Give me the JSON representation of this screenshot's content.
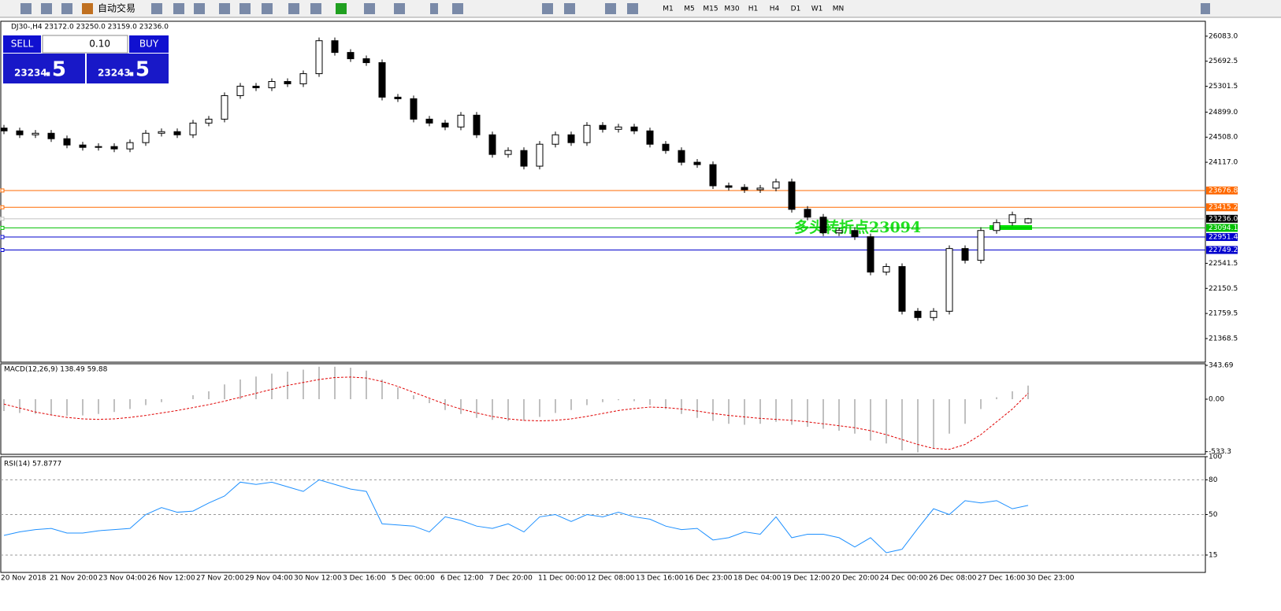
{
  "toolbar": {
    "auto_trade": "自动交易",
    "periods": [
      "M1",
      "M5",
      "M15",
      "M30",
      "H1",
      "H4",
      "D1",
      "W1",
      "MN"
    ]
  },
  "header": "DJ30-,H4  23172.0 23250.0 23159.0 23236.0",
  "trade_panel": {
    "sell": "SELL",
    "lot": "0.10",
    "buy": "BUY",
    "bid_main": "23234",
    "bid_frac": ".5",
    "ask_main": "23243",
    "ask_frac": ".5"
  },
  "annotation": "多头转折点23094",
  "time_labels": [
    "20 Nov 2018",
    "21 Nov 20:00",
    "23 Nov 04:00",
    "26 Nov 12:00",
    "27 Nov 20:00",
    "29 Nov 04:00",
    "30 Nov 12:00",
    "3 Dec 16:00",
    "5 Dec 00:00",
    "6 Dec 12:00",
    "7 Dec 20:00",
    "11 Dec 00:00",
    "12 Dec 08:00",
    "13 Dec 16:00",
    "16 Dec 23:00",
    "18 Dec 04:00",
    "19 Dec 12:00",
    "20 Dec 20:00",
    "24 Dec 00:00",
    "26 Dec 08:00",
    "27 Dec 16:00",
    "30 Dec 23:00"
  ],
  "chart_data": [
    {
      "type": "candlestick",
      "ylim": [
        21000,
        26303
      ],
      "yticks": [
        {
          "value": 26083,
          "label": "26083.0"
        },
        25692.5,
        25301.5,
        {
          "value": 24899,
          "label": "24899.0"
        },
        {
          "value": 24508,
          "label": "24508.0"
        },
        {
          "value": 24117,
          "label": "24117.0"
        },
        22541.5,
        22150.5,
        21759.5,
        21368.5
      ],
      "up_color": "#ffffff",
      "down_color": "#000000",
      "levels": [
        {
          "value": 23676.8,
          "color": "#ff6a00"
        },
        {
          "value": 23415.2,
          "color": "#ff6a00"
        },
        {
          "value": 23236,
          "label": "23236.0",
          "color": "#c0c0c0"
        },
        {
          "value": 23094.1,
          "color": "#00c000"
        },
        {
          "value": 22951.4,
          "color": "#0000cc"
        },
        {
          "value": 22749.2,
          "color": "#0000cc"
        }
      ],
      "candles": [
        [
          24650,
          24700,
          24556,
          24606
        ],
        [
          24606,
          24656,
          24495,
          24545
        ],
        [
          24545,
          24619,
          24495,
          24569
        ],
        [
          24569,
          24619,
          24434,
          24484
        ],
        [
          24484,
          24534,
          24336,
          24386
        ],
        [
          24386,
          24436,
          24299,
          24349
        ],
        [
          24349,
          24412,
          24299,
          24362
        ],
        [
          24362,
          24412,
          24275,
          24325
        ],
        [
          24325,
          24473,
          24275,
          24423
        ],
        [
          24423,
          24619,
          24373,
          24569
        ],
        [
          24569,
          24644,
          24519,
          24594
        ],
        [
          24594,
          24644,
          24495,
          24545
        ],
        [
          24545,
          24778,
          24495,
          24728
        ],
        [
          24728,
          24839,
          24678,
          24789
        ],
        [
          24789,
          25206,
          24739,
          25156
        ],
        [
          25156,
          25353,
          25106,
          25303
        ],
        [
          25303,
          25353,
          25228,
          25278
        ],
        [
          25278,
          25426,
          25228,
          25376
        ],
        [
          25376,
          25426,
          25290,
          25340
        ],
        [
          25340,
          25548,
          25290,
          25498
        ],
        [
          25498,
          26062,
          25448,
          26012
        ],
        [
          26012,
          26062,
          25779,
          25829
        ],
        [
          25829,
          25879,
          25681,
          25731
        ],
        [
          25731,
          25781,
          25620,
          25670
        ],
        [
          25670,
          25720,
          25082,
          25132
        ],
        [
          25132,
          25182,
          25057,
          25107
        ],
        [
          25107,
          25157,
          24739,
          24789
        ],
        [
          24789,
          24839,
          24678,
          24728
        ],
        [
          24728,
          24778,
          24617,
          24667
        ],
        [
          24667,
          24901,
          24617,
          24851
        ],
        [
          24851,
          24901,
          24495,
          24545
        ],
        [
          24545,
          24595,
          24189,
          24239
        ],
        [
          24239,
          24350,
          24189,
          24300
        ],
        [
          24300,
          24350,
          24006,
          24056
        ],
        [
          24056,
          24448,
          24006,
          24398
        ],
        [
          24398,
          24595,
          24348,
          24545
        ],
        [
          24545,
          24595,
          24373,
          24423
        ],
        [
          24423,
          24742,
          24373,
          24692
        ],
        [
          24692,
          24742,
          24580,
          24630
        ],
        [
          24630,
          24717,
          24580,
          24667
        ],
        [
          24667,
          24717,
          24556,
          24606
        ],
        [
          24606,
          24656,
          24348,
          24398
        ],
        [
          24398,
          24448,
          24250,
          24300
        ],
        [
          24300,
          24350,
          24067,
          24117
        ],
        [
          24117,
          24167,
          24030,
          24080
        ],
        [
          24080,
          24130,
          23700,
          23750
        ],
        [
          23750,
          23800,
          23676,
          23726
        ],
        [
          23726,
          23776,
          23639,
          23689
        ],
        [
          23689,
          23764,
          23639,
          23714
        ],
        [
          23714,
          23861,
          23664,
          23811
        ],
        [
          23811,
          23861,
          23333,
          23383
        ],
        [
          23383,
          23433,
          23211,
          23261
        ],
        [
          23261,
          23311,
          22967,
          23017
        ],
        [
          23017,
          23103,
          22967,
          23053
        ],
        [
          23053,
          23103,
          22906,
          22956
        ],
        [
          22956,
          23006,
          22355,
          22405
        ],
        [
          22405,
          22541,
          22355,
          22491
        ],
        [
          22491,
          22541,
          21744,
          21794
        ],
        [
          21794,
          21844,
          21646,
          21696
        ],
        [
          21696,
          21844,
          21646,
          21794
        ],
        [
          21794,
          22822,
          21744,
          22772
        ],
        [
          22772,
          22822,
          22539,
          22589
        ],
        [
          22589,
          23103,
          22539,
          23053
        ],
        [
          23053,
          23226,
          23003,
          23176
        ],
        [
          23176,
          23348,
          23126,
          23298
        ],
        [
          23172,
          23250,
          23159,
          23236
        ]
      ]
    },
    {
      "type": "macd",
      "title": "MACD(12,26,9) 138.49 59.88",
      "ylim": [
        -560,
        360
      ],
      "yticks": [
        343.69,
        {
          "value": 0,
          "label": "0.00"
        },
        -533.3
      ],
      "series": [
        {
          "name": "MACD",
          "color": "#c0c0c0",
          "values": [
            -120,
            -140,
            -150,
            -160,
            -170,
            -165,
            -150,
            -130,
            -100,
            -60,
            -30,
            0,
            40,
            80,
            150,
            200,
            230,
            260,
            280,
            300,
            330,
            330,
            320,
            290,
            200,
            120,
            40,
            -40,
            -110,
            -150,
            -190,
            -210,
            -220,
            -220,
            -180,
            -140,
            -110,
            -60,
            -30,
            -10,
            -20,
            -60,
            -100,
            -150,
            -190,
            -220,
            -250,
            -260,
            -250,
            -230,
            -260,
            -280,
            -300,
            -320,
            -350,
            -420,
            -450,
            -520,
            -540,
            -500,
            -350,
            -250,
            -100,
            20,
            80,
            138.49
          ]
        },
        {
          "name": "Signal",
          "color": "#e00000",
          "values": [
            -50,
            -90,
            -130,
            -160,
            -185,
            -200,
            -205,
            -200,
            -185,
            -165,
            -140,
            -115,
            -85,
            -55,
            -20,
            20,
            60,
            100,
            140,
            170,
            200,
            220,
            225,
            215,
            180,
            130,
            70,
            10,
            -50,
            -100,
            -140,
            -175,
            -200,
            -215,
            -220,
            -215,
            -200,
            -175,
            -145,
            -115,
            -95,
            -80,
            -85,
            -100,
            -120,
            -145,
            -165,
            -180,
            -195,
            -205,
            -215,
            -230,
            -250,
            -270,
            -290,
            -320,
            -360,
            -410,
            -460,
            -500,
            -510,
            -460,
            -360,
            -230,
            -100,
            59.88
          ]
        }
      ]
    },
    {
      "type": "line",
      "title": "RSI(14) 57.8777",
      "ylim": [
        0,
        100
      ],
      "yticks": [
        100,
        80,
        50,
        15
      ],
      "levels": [
        80,
        50,
        15
      ],
      "color": "#1e90ff",
      "values": [
        32,
        35,
        37,
        38,
        34,
        34,
        36,
        37,
        38,
        50,
        56,
        52,
        53,
        60,
        66,
        78,
        76,
        78,
        74,
        70,
        80,
        76,
        72,
        70,
        42,
        41,
        40,
        35,
        48,
        45,
        40,
        38,
        42,
        35,
        48,
        50,
        44,
        50,
        48,
        52,
        48,
        46,
        40,
        37,
        38,
        28,
        30,
        35,
        33,
        48,
        30,
        33,
        33,
        30,
        22,
        30,
        17,
        20,
        38,
        55,
        50,
        62,
        60,
        62,
        55,
        57.8777
      ]
    }
  ]
}
